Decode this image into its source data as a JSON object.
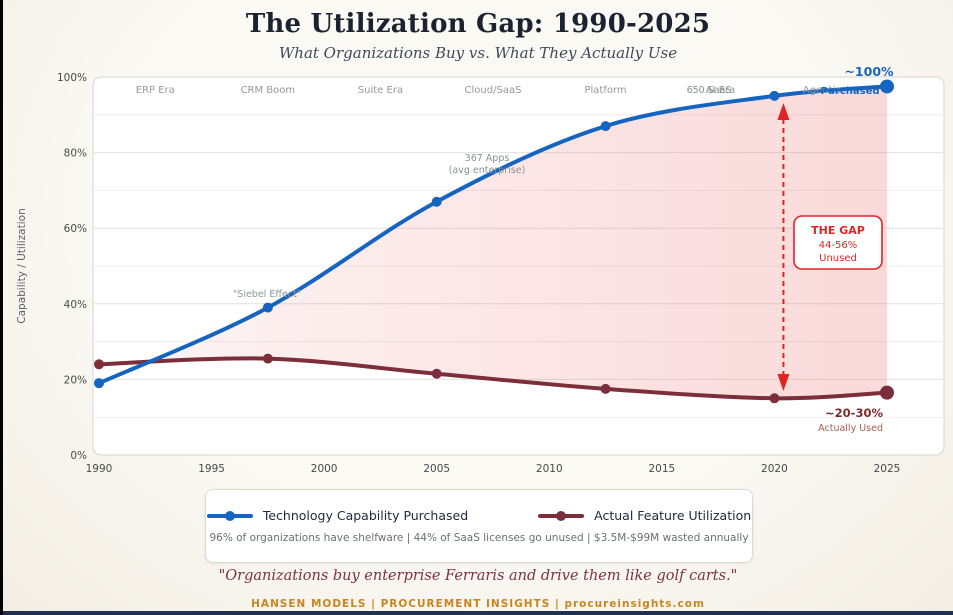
{
  "page": {
    "title": "The Utilization Gap: 1990-2025",
    "subtitle": "What Organizations Buy vs. What They Actually Use",
    "quote": "\"Organizations buy enterprise Ferraris and drive them like golf carts.\"",
    "footer": "HANSEN MODELS | PROCUREMENT INSIGHTS | procureinsights.com"
  },
  "chart_data": {
    "type": "line",
    "title": "The Utilization Gap: 1990-2025",
    "xlabel": "",
    "ylabel": "Capability / Utilization",
    "xlim": [
      1990,
      2025
    ],
    "ylim": [
      0,
      100
    ],
    "grid": "horizontal every 10%, labels every 20%",
    "x_ticks": [
      1990,
      1995,
      2000,
      2005,
      2010,
      2015,
      2020,
      2025
    ],
    "y_ticks": [
      "0%",
      "20%",
      "40%",
      "60%",
      "80%",
      "100%"
    ],
    "x": [
      1990,
      1997.5,
      2005,
      2012.5,
      2020,
      2025
    ],
    "series": [
      {
        "name": "Technology Capability Purchased",
        "color": "#1565c0",
        "values": [
          19,
          39,
          67,
          87,
          95,
          97.5
        ]
      },
      {
        "name": "Actual Feature Utilization",
        "color": "#7c2f3a",
        "values": [
          24,
          25.5,
          21.5,
          17.5,
          15,
          16.5
        ]
      }
    ],
    "fill_between": {
      "between": "series 0 and series 1",
      "color": "#e65353",
      "opacity_left": 0.06,
      "opacity_right": 0.22
    },
    "era_labels": [
      {
        "label": "ERP Era",
        "year": 1992.5
      },
      {
        "label": "CRM Boom",
        "year": 1997.5
      },
      {
        "label": "Suite Era",
        "year": 2002.5
      },
      {
        "label": "Cloud/SaaS",
        "year": 2007.5
      },
      {
        "label": "Platform",
        "year": 2012.5
      },
      {
        "label": "AI Era",
        "year": 2017.6
      },
      {
        "label": "Agentic",
        "year": 2022.1
      }
    ],
    "annotations": {
      "siebel": "\"Siebel Effect\"",
      "apps_line1": "367 Apps",
      "apps_line2": "(avg enterprise)",
      "saas": "650 SaaS",
      "top_value": "~100%",
      "purchased_label": "Purchased",
      "gap_title": "THE GAP",
      "gap_value": "44-56%",
      "gap_sub": "Unused",
      "used_value": "~20-30%",
      "used_sub": "Actually Used",
      "gap_arrow_year": 2020.4
    },
    "colors": {
      "purchased_blue": "#1565c0",
      "utilization_maroon": "#7c2f3a",
      "gap_red": "#e02424",
      "used_dark_red": "#7e2a2a",
      "used_light_red": "#a6604f"
    }
  },
  "legend": {
    "items": [
      {
        "label": "Technology Capability Purchased",
        "color": "#1565c0"
      },
      {
        "label": "Actual Feature Utilization",
        "color": "#7c2f3a"
      }
    ],
    "stats": "96% of organizations have shelfware | 44% of SaaS licenses go unused | $3.5M-$99M wasted annually"
  }
}
